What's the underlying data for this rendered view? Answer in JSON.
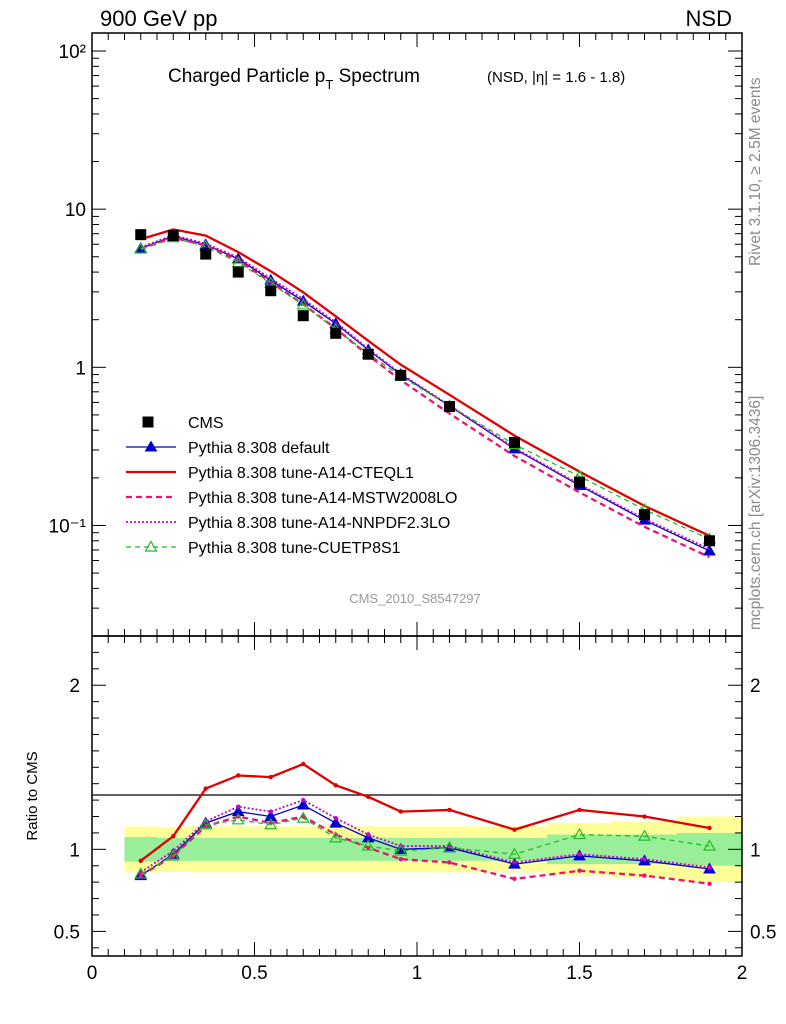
{
  "header": {
    "left": "900 GeV pp",
    "right": "NSD"
  },
  "side_text": {
    "rivet": "Rivet 3.1.10, ≥ 2.5M events",
    "mcplots": "mcplots.cern.ch [arXiv:1306.3436]"
  },
  "colors": {
    "default": "#0000cc",
    "cteql1": "#e00000",
    "mstw": "#ee1177",
    "nnpdf": "#cc00cc",
    "cuetp8s1": "#22bb22",
    "band_outer": "#ffff99",
    "band_inner": "#99ee99"
  },
  "chart_data": [
    {
      "type": "scatter",
      "title_main": "Charged Particle p",
      "title_sub": "T",
      "title_main2": " Spectrum",
      "title_note": "(NSD, |η| = 1.6 - 1.8)",
      "watermark": "CMS_2010_S8547297",
      "yscale": "log",
      "xlim": [
        0,
        2
      ],
      "ylim": [
        0.02,
        130
      ],
      "ytick_labels": [
        "10⁻¹",
        "1",
        "10",
        "10²"
      ],
      "legend_position": "left, middle",
      "x": [
        0.15,
        0.25,
        0.35,
        0.45,
        0.55,
        0.65,
        0.75,
        0.85,
        0.95,
        1.1,
        1.3,
        1.5,
        1.7,
        1.9
      ],
      "data": {
        "name": "CMS",
        "values": [
          6.9,
          6.8,
          5.2,
          4.0,
          3.05,
          2.12,
          1.64,
          1.21,
          0.89,
          0.565,
          0.335,
          0.188,
          0.117,
          0.08
        ]
      },
      "series": [
        {
          "name": "Pythia 8.308 default",
          "key": "default",
          "values": [
            5.65,
            6.75,
            5.95,
            4.85,
            3.55,
            2.62,
            1.89,
            1.29,
            0.9,
            0.57,
            0.305,
            0.179,
            0.108,
            0.069
          ]
        },
        {
          "name": "Pythia 8.308 tune-A14-CTEQL1",
          "key": "cteql1",
          "values": [
            6.45,
            7.45,
            6.8,
            5.35,
            4.05,
            2.98,
            2.1,
            1.47,
            1.04,
            0.67,
            0.37,
            0.219,
            0.133,
            0.086
          ]
        },
        {
          "name": "Pythia 8.308 tune-A14-MSTW2008LO",
          "key": "mstw",
          "values": [
            5.6,
            6.6,
            5.9,
            4.75,
            3.45,
            2.5,
            1.76,
            1.19,
            0.83,
            0.51,
            0.275,
            0.162,
            0.098,
            0.063
          ]
        },
        {
          "name": "Pythia 8.308 tune-A14-NNPDF2.3LO",
          "key": "nnpdf",
          "values": [
            5.75,
            6.85,
            6.05,
            4.95,
            3.65,
            2.7,
            1.93,
            1.31,
            0.91,
            0.575,
            0.31,
            0.182,
            0.11,
            0.071
          ]
        },
        {
          "name": "Pythia 8.308 tune-CUETP8S1",
          "key": "cuetp8s1",
          "values": [
            5.6,
            6.6,
            5.8,
            4.6,
            3.4,
            2.48,
            1.74,
            1.22,
            0.88,
            0.57,
            0.325,
            0.205,
            0.126,
            0.082
          ]
        }
      ]
    },
    {
      "type": "line",
      "ylabel": "Ratio to CMS",
      "xlim": [
        0,
        2
      ],
      "ylim": [
        0.35,
        2.3
      ],
      "xtick_labels": [
        "0",
        "0.5",
        "1",
        "1.5",
        "2"
      ],
      "ytick_labels": [
        "0.5",
        "1",
        "2"
      ],
      "x": [
        0.15,
        0.25,
        0.35,
        0.45,
        0.55,
        0.65,
        0.75,
        0.85,
        0.95,
        1.1,
        1.3,
        1.5,
        1.7,
        1.9
      ],
      "bins": [
        0.1,
        0.2,
        0.3,
        0.4,
        0.5,
        0.6,
        0.7,
        0.8,
        0.9,
        1.0,
        1.2,
        1.4,
        1.6,
        1.8,
        2.0
      ],
      "band_outer": [
        0.14,
        0.135,
        0.14,
        0.14,
        0.14,
        0.14,
        0.14,
        0.14,
        0.14,
        0.14,
        0.14,
        0.16,
        0.17,
        0.2
      ],
      "band_inner": [
        0.075,
        0.07,
        0.07,
        0.07,
        0.07,
        0.07,
        0.07,
        0.07,
        0.07,
        0.07,
        0.07,
        0.09,
        0.09,
        0.1
      ],
      "series": [
        {
          "name": "Pythia 8.308 default",
          "key": "default",
          "values": [
            0.84,
            0.97,
            1.16,
            1.23,
            1.2,
            1.27,
            1.16,
            1.07,
            1.0,
            1.01,
            0.91,
            0.96,
            0.93,
            0.88
          ]
        },
        {
          "name": "Pythia 8.308 tune-A14-CTEQL1",
          "key": "cteql1",
          "values": [
            0.93,
            1.08,
            1.37,
            1.45,
            1.44,
            1.52,
            1.39,
            1.32,
            1.23,
            1.24,
            1.12,
            1.24,
            1.2,
            1.13
          ]
        },
        {
          "name": "Pythia 8.308 tune-A14-MSTW2008LO",
          "key": "mstw",
          "values": [
            0.84,
            0.96,
            1.14,
            1.2,
            1.16,
            1.2,
            1.09,
            1.01,
            0.94,
            0.92,
            0.82,
            0.87,
            0.84,
            0.79
          ]
        },
        {
          "name": "Pythia 8.308 tune-A14-NNPDF2.3LO",
          "key": "nnpdf",
          "values": [
            0.86,
            0.99,
            1.17,
            1.26,
            1.23,
            1.3,
            1.19,
            1.09,
            1.02,
            1.02,
            0.92,
            0.97,
            0.94,
            0.89
          ]
        },
        {
          "name": "Pythia 8.308 tune-CUETP8S1",
          "key": "cuetp8s1",
          "values": [
            0.85,
            0.96,
            1.15,
            1.18,
            1.15,
            1.19,
            1.07,
            1.02,
            0.99,
            1.01,
            0.97,
            1.09,
            1.08,
            1.02
          ]
        }
      ]
    }
  ]
}
